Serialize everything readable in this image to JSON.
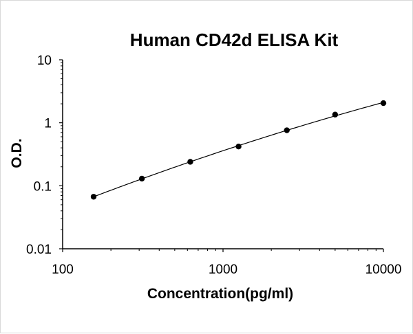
{
  "chart_data": {
    "type": "scatter",
    "title": "Human CD42d ELISA Kit",
    "xlabel": "Concentration(pg/ml)",
    "ylabel": "O.D.",
    "x_scale": "log",
    "y_scale": "log",
    "xlim": [
      100,
      10000
    ],
    "ylim": [
      0.01,
      10
    ],
    "x_ticks": [
      "100",
      "1000",
      "10000"
    ],
    "y_ticks": [
      "0.01",
      "0.1",
      "1",
      "10"
    ],
    "grid": false,
    "legend": "none",
    "series": [
      {
        "x": [
          156,
          312,
          625,
          1250,
          2500,
          5000,
          10000
        ],
        "y": [
          0.067,
          0.13,
          0.24,
          0.42,
          0.76,
          1.35,
          2.05
        ]
      }
    ],
    "fit_curve": true
  }
}
